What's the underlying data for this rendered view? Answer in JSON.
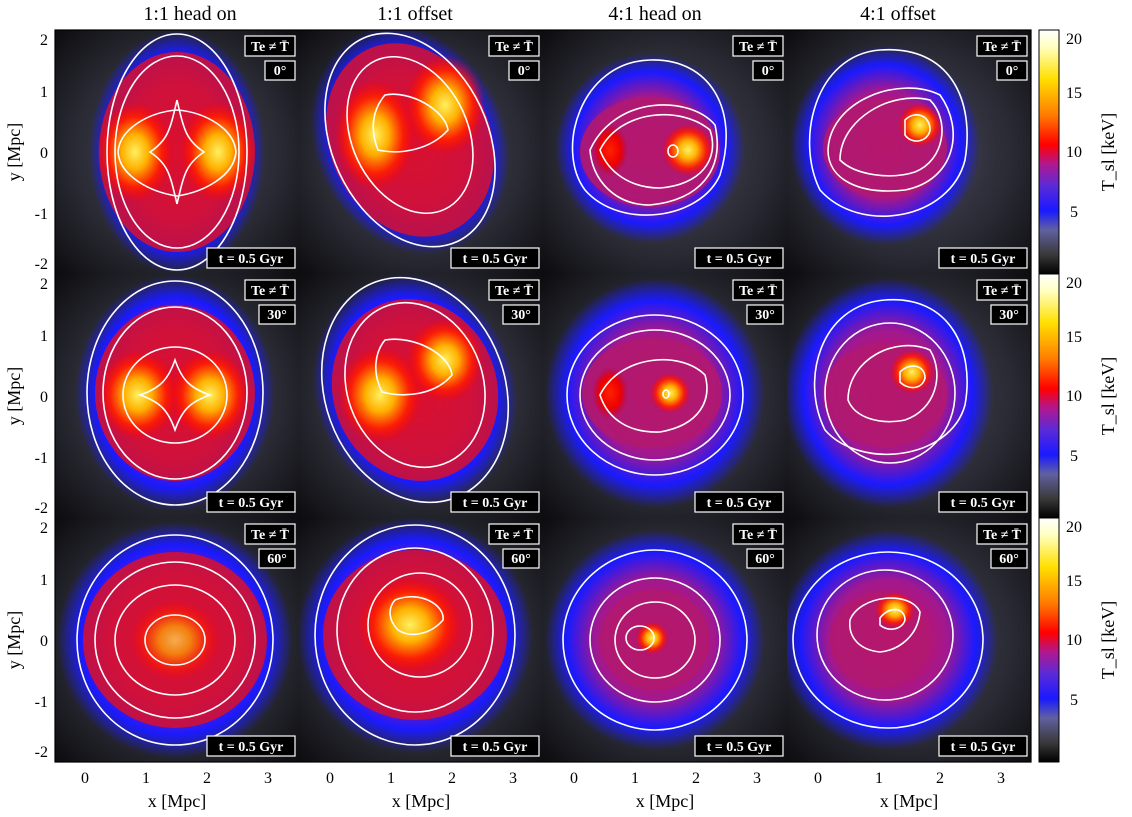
{
  "columns": [
    "1:1 head on",
    "1:1 offset",
    "4:1 head on",
    "4:1 offset"
  ],
  "rows": [
    {
      "angle": "0°"
    },
    {
      "angle": "30°"
    },
    {
      "angle": "60°"
    }
  ],
  "panel_label_te": "Te ≠ T̄",
  "panel_label_time": "t =  0.5 Gyr",
  "y_axis_label": "y [Mpc]",
  "x_axis_label": "x [Mpc]",
  "y_ticks": [
    "2",
    "1",
    "0",
    "-1",
    "-2"
  ],
  "x_ticks": [
    "0",
    "1",
    "2",
    "3"
  ],
  "colorbar": {
    "label": "T_sl [keV]",
    "ticks": [
      "20",
      "15",
      "10",
      "5"
    ],
    "colors": [
      "#000000",
      "#3a3a3a",
      "#6060a0",
      "#1a1aff",
      "#5a2ad8",
      "#b01890",
      "#ff0000",
      "#ff7a00",
      "#ffe000",
      "#ffffc0",
      "#ffffff"
    ]
  }
}
